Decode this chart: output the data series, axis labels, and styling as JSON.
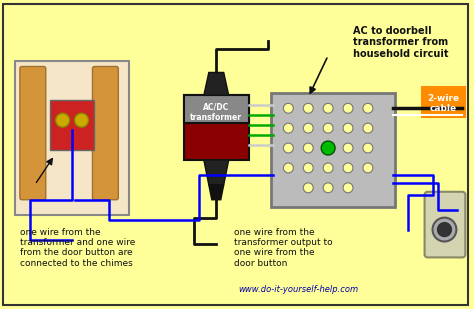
{
  "bg_color": "#FFFF99",
  "fig_width": 4.74,
  "fig_height": 3.09,
  "dpi": 100,
  "annotations": {
    "ac_label": "AC to doorbell\ntransformer from\nhousehold circuit",
    "two_wire": "2-wire\ncable",
    "chimes_label": "one wire from the\ntransformer and one wire\nfrom the door button are\nconnected to the chimes",
    "transformer_label": "one wire from the\ntransformer output to\none wire from the\ndoor button",
    "website": "www.do-it-yourself-help.com",
    "acdc_label": "AC/DC\ntransformer"
  },
  "colors": {
    "yellow_bg": "#FFFF99",
    "border_color": "#333333",
    "blue_wire": "#0000FF",
    "green_wire": "#00AA00",
    "black_wire": "#111111",
    "white_wire": "#CCCCCC",
    "orange_label_bg": "#FF8C00",
    "chime_box_bg": "#F5E6C8",
    "chime_box_border": "#888888",
    "pipe_color": "#D4943A",
    "transformer_body": "#8B0000",
    "transformer_top": "#888888",
    "junction_box": "#AAAAAA",
    "door_button": "#D4D4B0",
    "arrow_color": "#111111",
    "text_color": "#111111",
    "website_color": "#0000AA"
  }
}
